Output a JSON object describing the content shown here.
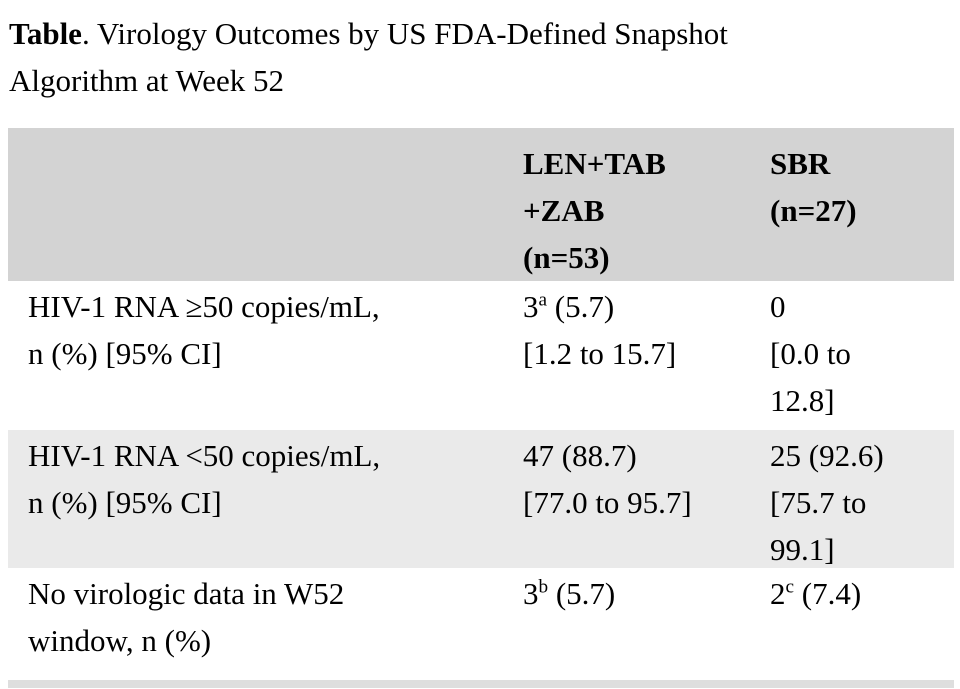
{
  "colors": {
    "text": "#000000",
    "header_bg": "#d3d3d3",
    "stripe_bg": "#eaeaea",
    "strip_bg": "#dedede"
  },
  "title": {
    "bold": "Table",
    "line1_rest": ". Virology Outcomes by US FDA-Defined Snapshot",
    "line2": "Algorithm at Week 52"
  },
  "table": {
    "header": {
      "col1": "",
      "col2_lines": [
        "LEN+TAB",
        "+ZAB",
        "(n=53)"
      ],
      "col3_lines": [
        "SBR",
        "(n=27)"
      ]
    },
    "rows": [
      {
        "label_lines": [
          "HIV-1 RNA ≥50 copies/mL,",
          "n (%) [95% CI]"
        ],
        "col2": {
          "n": "3",
          "sup": "a",
          "pct": " (5.7)",
          "ci_lines": [
            "[1.2 to 15.7]"
          ]
        },
        "col3": {
          "n": "0",
          "sup": "",
          "pct": "",
          "ci_lines": [
            "[0.0 to",
            "12.8]"
          ]
        }
      },
      {
        "label_lines": [
          "HIV-1 RNA <50 copies/mL,",
          "n (%) [95% CI]"
        ],
        "col2": {
          "n": "47",
          "sup": "",
          "pct": " (88.7)",
          "ci_lines": [
            "[77.0 to 95.7]"
          ]
        },
        "col3": {
          "n": "25",
          "sup": "",
          "pct": " (92.6)",
          "ci_lines": [
            "[75.7 to",
            "99.1]"
          ]
        }
      },
      {
        "label_lines": [
          "No virologic data in W52",
          "window, n (%)"
        ],
        "col2": {
          "n": "3",
          "sup": "b",
          "pct": " (5.7)",
          "ci_lines": []
        },
        "col3": {
          "n": "2",
          "sup": "c",
          "pct": " (7.4)",
          "ci_lines": []
        }
      }
    ]
  },
  "chart_data": {
    "type": "table",
    "title": "Table. Virology Outcomes by US FDA-Defined Snapshot Algorithm at Week 52",
    "columns": [
      "",
      "LEN+TAB+ZAB (n=53)",
      "SBR (n=27)"
    ],
    "rows": [
      [
        "HIV-1 RNA ≥50 copies/mL, n (%) [95% CI]",
        "3a (5.7) [1.2 to 15.7]",
        "0 [0.0 to 12.8]"
      ],
      [
        "HIV-1 RNA <50 copies/mL, n (%) [95% CI]",
        "47 (88.7) [77.0 to 95.7]",
        "25 (92.6) [75.7 to 99.1]"
      ],
      [
        "No virologic data in W52 window, n (%)",
        "3b (5.7)",
        "2c (7.4)"
      ]
    ]
  }
}
